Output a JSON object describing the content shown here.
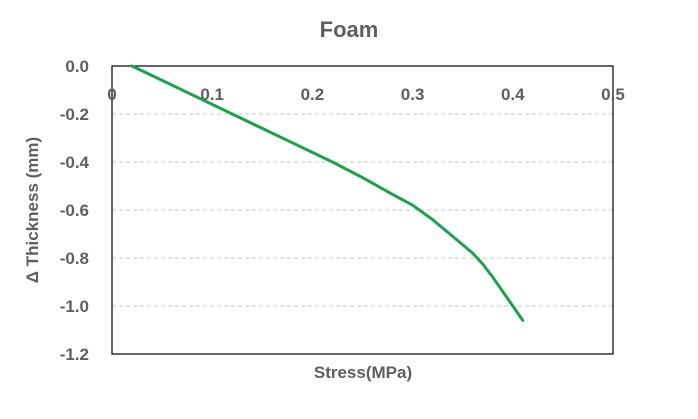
{
  "chart_data": {
    "type": "line",
    "title": "Foam",
    "xlabel": "Stress(MPa)",
    "ylabel": "Δ Thickness (mm)",
    "xlim": [
      0,
      0.5
    ],
    "ylim": [
      -1.2,
      0.0
    ],
    "x_ticks": [
      "0",
      "0.1",
      "0.2",
      "0.3",
      "0.4",
      "0.5"
    ],
    "y_ticks": [
      "0.0",
      "-0.2",
      "-0.4",
      "-0.6",
      "-0.8",
      "-1.0",
      "-1.2"
    ],
    "grid": "horizontal dashed",
    "legend": "none",
    "series": [
      {
        "color": "#1aa34a",
        "x": [
          0.02,
          0.05,
          0.08,
          0.1,
          0.12,
          0.15,
          0.18,
          0.2,
          0.22,
          0.25,
          0.28,
          0.3,
          0.32,
          0.34,
          0.36,
          0.37,
          0.38,
          0.39,
          0.4,
          0.41
        ],
        "y": [
          0.0,
          -0.06,
          -0.12,
          -0.16,
          -0.2,
          -0.26,
          -0.32,
          -0.36,
          -0.4,
          -0.465,
          -0.535,
          -0.58,
          -0.64,
          -0.71,
          -0.78,
          -0.825,
          -0.88,
          -0.94,
          -1.0,
          -1.06
        ]
      }
    ]
  }
}
